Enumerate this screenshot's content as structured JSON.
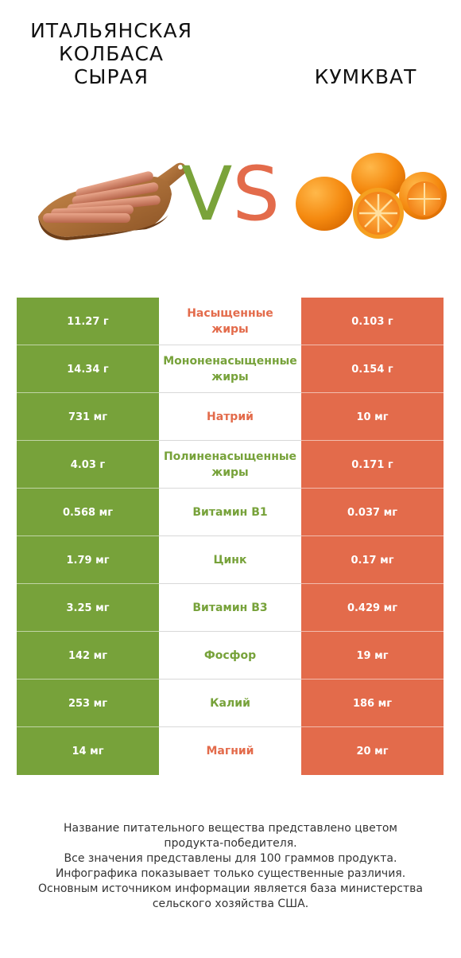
{
  "header": {
    "left_title": "ИТАЛЬЯНСКАЯ\nКОЛБАСА\nСЫРАЯ",
    "right_title": "КУМКВАТ",
    "vs_v": "V",
    "vs_s": "S"
  },
  "colors": {
    "left_product": "#77a23a",
    "right_product": "#e36b4b"
  },
  "images": {
    "left": "sausage-on-board",
    "right": "kumquats"
  },
  "rows": [
    {
      "left": "11.27 г",
      "nutrient": "Насыщенные\nжиры",
      "right": "0.103 г",
      "winner": "red"
    },
    {
      "left": "14.34 г",
      "nutrient": "Мононенасыщенные\nжиры",
      "right": "0.154 г",
      "winner": "green"
    },
    {
      "left": "731 мг",
      "nutrient": "Натрий",
      "right": "10 мг",
      "winner": "red"
    },
    {
      "left": "4.03 г",
      "nutrient": "Полиненасыщенные\nжиры",
      "right": "0.171 г",
      "winner": "green"
    },
    {
      "left": "0.568 мг",
      "nutrient": "Витамин B1",
      "right": "0.037 мг",
      "winner": "green"
    },
    {
      "left": "1.79 мг",
      "nutrient": "Цинк",
      "right": "0.17 мг",
      "winner": "green"
    },
    {
      "left": "3.25 мг",
      "nutrient": "Витамин B3",
      "right": "0.429 мг",
      "winner": "green"
    },
    {
      "left": "142 мг",
      "nutrient": "Фосфор",
      "right": "19 мг",
      "winner": "green"
    },
    {
      "left": "253 мг",
      "nutrient": "Калий",
      "right": "186 мг",
      "winner": "green"
    },
    {
      "left": "14 мг",
      "nutrient": "Магний",
      "right": "20 мг",
      "winner": "red"
    }
  ],
  "footer": {
    "lines": [
      "Название питательного вещества представлено цветом",
      "продукта-победителя.",
      "Все значения представлены для 100 граммов продукта.",
      "Инфографика показывает только существенные различия.",
      "Основным источником информации является база министерства",
      "сельского хозяйства США."
    ]
  }
}
